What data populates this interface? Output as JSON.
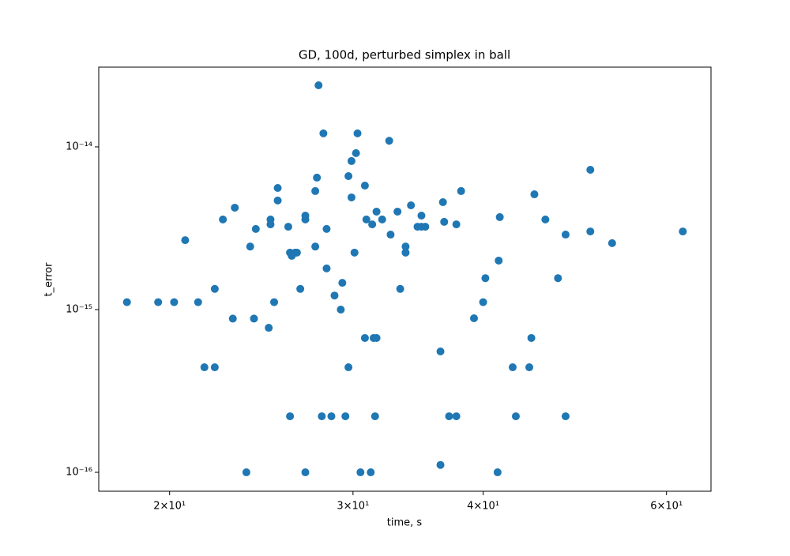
{
  "chart_data": {
    "type": "scatter",
    "title": "GD, 100d, perturbed simplex in ball",
    "xlabel": "time, s",
    "ylabel": "t_error",
    "color": "#1f77b4",
    "xscale": "log",
    "yscale": "log",
    "xlim": [
      17.1,
      66.2
    ],
    "ylim": [
      7.65e-17,
      3.09e-14
    ],
    "xticks": [
      {
        "value": 20,
        "label": "2×10¹"
      },
      {
        "value": 30,
        "label": "3×10¹"
      },
      {
        "value": 40,
        "label": "4×10¹"
      },
      {
        "value": 60,
        "label": "6×10¹"
      }
    ],
    "yticks": [
      {
        "value": 1e-16,
        "label": "10⁻¹⁶"
      },
      {
        "value": 1e-15,
        "label": "10⁻¹⁵"
      },
      {
        "value": 1e-14,
        "label": "10⁻¹⁴"
      }
    ],
    "x": [
      18.2,
      19.5,
      20.2,
      21.3,
      20.7,
      21.6,
      22.1,
      22.1,
      22.5,
      23.0,
      23.1,
      23.7,
      23.9,
      24.1,
      24.2,
      24.9,
      25.0,
      25.0,
      25.2,
      25.4,
      25.4,
      26.0,
      26.1,
      26.1,
      26.2,
      26.4,
      26.5,
      26.7,
      27.0,
      27.0,
      27.0,
      27.6,
      27.6,
      27.7,
      27.8,
      28.0,
      28.1,
      28.3,
      28.3,
      28.6,
      28.8,
      29.2,
      29.3,
      29.5,
      29.7,
      29.7,
      29.9,
      29.9,
      30.1,
      30.2,
      30.3,
      30.5,
      30.8,
      30.8,
      30.9,
      31.2,
      31.3,
      31.4,
      31.5,
      31.6,
      31.6,
      32.0,
      32.5,
      32.6,
      33.1,
      33.3,
      33.7,
      33.7,
      34.1,
      34.6,
      34.9,
      34.9,
      35.2,
      36.4,
      36.4,
      36.6,
      36.7,
      37.1,
      37.7,
      37.7,
      38.1,
      39.2,
      40.0,
      40.2,
      41.3,
      41.4,
      41.5,
      42.7,
      43.0,
      44.3,
      44.5,
      44.8,
      45.9,
      47.2,
      48.0,
      48.0,
      50.7,
      50.7,
      53.2,
      62.2
    ],
    "y": [
      1.11e-15,
      1.11e-15,
      1.11e-15,
      1.11e-15,
      2.67e-15,
      4.42e-16,
      4.42e-16,
      1.34e-15,
      3.58e-15,
      8.8e-16,
      4.23e-15,
      1e-16,
      2.44e-15,
      8.8e-16,
      3.13e-15,
      7.73e-16,
      3.58e-15,
      3.34e-15,
      1.11e-15,
      4.68e-15,
      5.59e-15,
      3.23e-15,
      2.24e-15,
      2.21e-16,
      2.14e-15,
      2.24e-15,
      2.24e-15,
      1.34e-15,
      3.78e-15,
      3.58e-15,
      1e-16,
      5.35e-15,
      2.44e-15,
      6.47e-15,
      2.39e-14,
      2.21e-16,
      1.21e-14,
      3.13e-15,
      1.79e-15,
      2.21e-16,
      1.22e-15,
      1e-15,
      1.46e-15,
      2.21e-16,
      4.42e-16,
      6.61e-15,
      4.89e-15,
      8.18e-15,
      2.24e-15,
      9.15e-15,
      1.21e-14,
      1e-16,
      6.69e-16,
      5.78e-15,
      3.58e-15,
      1e-16,
      3.34e-15,
      6.69e-16,
      2.21e-16,
      6.69e-16,
      4e-15,
      3.58e-15,
      1.09e-14,
      2.89e-15,
      4e-15,
      1.34e-15,
      2.44e-15,
      2.24e-15,
      4.37e-15,
      3.23e-15,
      3.23e-15,
      3.78e-15,
      3.23e-15,
      5.53e-16,
      1.11e-16,
      4.57e-15,
      3.46e-15,
      2.21e-16,
      3.34e-15,
      2.21e-16,
      5.35e-15,
      8.84e-16,
      1.11e-15,
      1.56e-15,
      1e-16,
      2e-15,
      3.7e-15,
      4.42e-16,
      2.21e-16,
      4.42e-16,
      6.69e-16,
      5.11e-15,
      3.58e-15,
      1.56e-15,
      2.89e-15,
      2.21e-16,
      7.23e-15,
      3.02e-15,
      2.56e-15,
      3.02e-15
    ]
  }
}
